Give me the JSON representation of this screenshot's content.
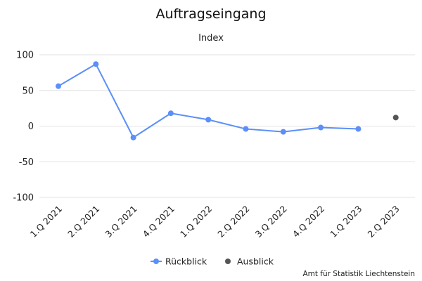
{
  "chart_data": {
    "type": "line",
    "title": "Auftragseingang",
    "subtitle": "Index",
    "categories": [
      "1.Q 2021",
      "2.Q 2021",
      "3.Q 2021",
      "4.Q 2021",
      "1.Q 2022",
      "2.Q 2022",
      "3.Q 2022",
      "4.Q 2022",
      "1.Q 2023",
      "2.Q 2023"
    ],
    "ylim": [
      -100,
      100
    ],
    "yticks": [
      100,
      50,
      0,
      -50,
      -100
    ],
    "ytick_labels": [
      "100",
      "50",
      "0",
      "-50",
      "-100"
    ],
    "grid": true,
    "legend_position": "bottom",
    "series": [
      {
        "name": "Rückblick",
        "color": "#5b8ff9",
        "style": "line",
        "values": [
          56,
          87,
          -16,
          18,
          9,
          -4,
          -8,
          -2,
          -4,
          null
        ]
      },
      {
        "name": "Ausblick",
        "color": "#555555",
        "style": "point",
        "values": [
          null,
          null,
          null,
          null,
          null,
          null,
          null,
          null,
          null,
          12
        ]
      }
    ]
  },
  "source": "Amt für Statistik Liechtenstein"
}
